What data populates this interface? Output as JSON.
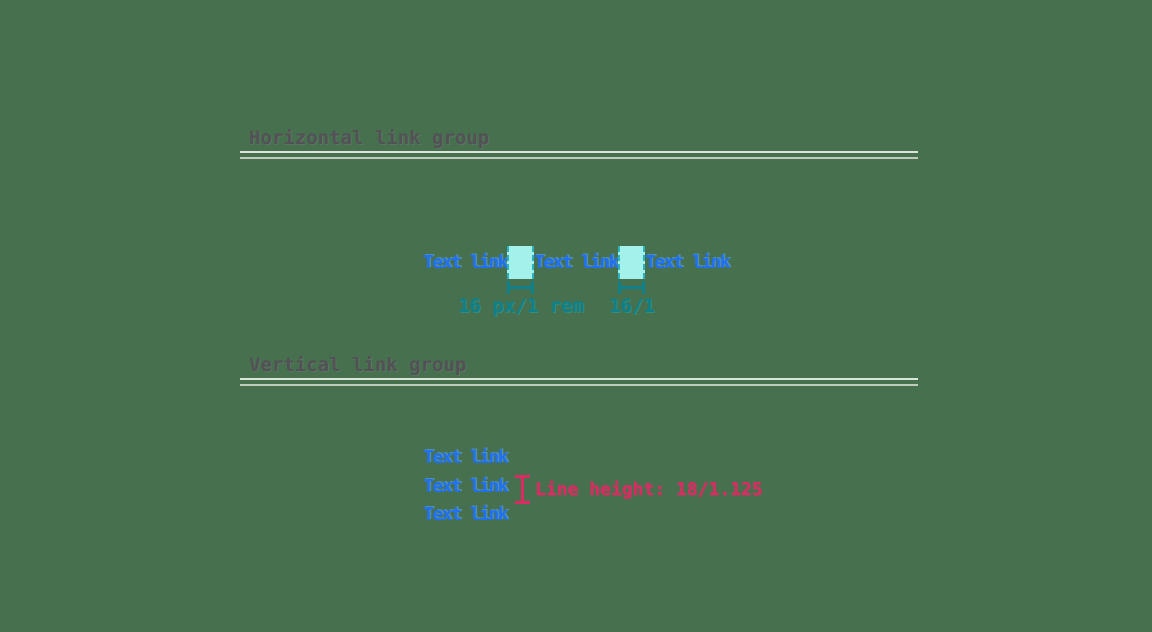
{
  "horizontal_group": {
    "heading": "Horizontal link group",
    "links": [
      "Text link",
      "Text link",
      "Text link"
    ],
    "spacing_labels": [
      "16 px/1 rem",
      "16/1"
    ]
  },
  "vertical_group": {
    "heading": "Vertical link group",
    "links": [
      "Text link",
      "Text link",
      "Text link"
    ],
    "line_height_label": "Line height: 18/1.125"
  },
  "colors": {
    "background": "#47714e",
    "link": "#2170f0",
    "link-highlight": "#58a8ff",
    "spacer-fill": "#a4f1ec",
    "spacer-border": "#2ab3bb",
    "measure": "#0e808a",
    "line-height": "#de2a63",
    "heading": "#515156",
    "divider-top": "#dce3d8",
    "divider-bottom": "#c0cabd"
  }
}
